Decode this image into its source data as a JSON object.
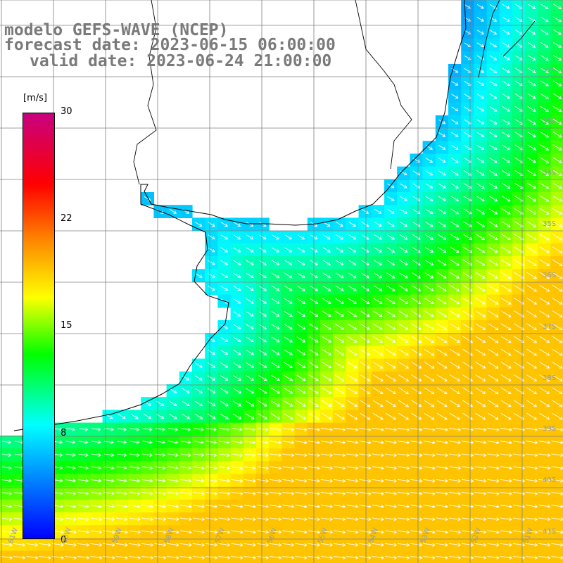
{
  "title": {
    "line1": "modelo GEFS-WAVE (NCEP)",
    "line2": "forecast date: 2023-06-15 06:00:00",
    "line3": "valid date: 2023-06-24 21:00:00"
  },
  "colorbar": {
    "units": "[m/s]",
    "ticks": [
      "30",
      "22",
      "15",
      "8",
      "0"
    ],
    "stops": [
      "#0000ff",
      "#00ffff",
      "#00ff00",
      "#ffff00",
      "#ff8800",
      "#ff0000",
      "#c80080"
    ]
  },
  "axes": {
    "lat_labels": [
      "32S",
      "33S",
      "34S",
      "35S",
      "36S",
      "37S",
      "38S",
      "39S",
      "40S",
      "41S"
    ],
    "lon_labels": [
      "61W",
      "60W",
      "59W",
      "58W",
      "57W",
      "56W",
      "55W",
      "54W",
      "53W",
      "52W",
      "51W"
    ]
  },
  "colors": {
    "land": "#ffffff",
    "coastline": "#000000",
    "grid": "#808080",
    "arrows": "#ffffff"
  },
  "chart_data": {
    "type": "heatmap",
    "variable": "wind speed with direction arrows",
    "units": "m/s",
    "scale": [
      0,
      30
    ]
  }
}
